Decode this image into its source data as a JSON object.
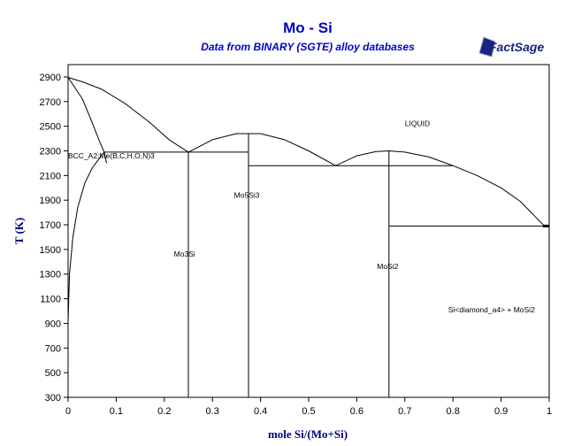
{
  "chart_data": {
    "type": "line",
    "title": "Mo - Si",
    "subtitle": "Data from BINARY (SGTE) alloy databases",
    "logo": "FactSage",
    "xlabel": "mole Si/(Mo+Si)",
    "ylabel": "T (K)",
    "xlim": [
      0,
      1
    ],
    "ylim": [
      300,
      3000
    ],
    "xticks": [
      0,
      0.1,
      0.2,
      0.3,
      0.4,
      0.5,
      0.6,
      0.7,
      0.8,
      0.9,
      1
    ],
    "xtick_labels": [
      "0",
      "0.1",
      "0.2",
      "0.3",
      "0.4",
      "0.5",
      "0.6",
      "0.7",
      "0.8",
      "0.9",
      "1"
    ],
    "yticks": [
      300,
      500,
      700,
      900,
      1100,
      1300,
      1500,
      1700,
      1900,
      2100,
      2300,
      2500,
      2700,
      2900
    ],
    "ytick_labels": [
      "300",
      "500",
      "700",
      "900",
      "1100",
      "1300",
      "1500",
      "1700",
      "1900",
      "2100",
      "2300",
      "2500",
      "2700",
      "2900"
    ],
    "grid": false,
    "series": [
      {
        "x": [
          0,
          0.03,
          0.07,
          0.12,
          0.17,
          0.21,
          0.25
        ],
        "y": [
          2896,
          2860,
          2800,
          2680,
          2530,
          2390,
          2290
        ]
      },
      {
        "x": [
          0,
          0.03,
          0.05,
          0.065,
          0.075,
          0.08
        ],
        "y": [
          2896,
          2720,
          2530,
          2380,
          2290,
          2200
        ]
      },
      {
        "x": [
          0,
          0.003,
          0.01,
          0.02,
          0.035,
          0.05,
          0.065,
          0.075
        ],
        "y": [
          920,
          1300,
          1600,
          1840,
          2040,
          2160,
          2240,
          2290
        ]
      },
      {
        "x": [
          0.25,
          0.3,
          0.35,
          0.4,
          0.45,
          0.5,
          0.556
        ],
        "y": [
          2290,
          2390,
          2440,
          2440,
          2390,
          2300,
          2180
        ]
      },
      {
        "x": [
          0.556,
          0.6,
          0.64,
          0.667,
          0.7,
          0.75,
          0.8,
          0.85,
          0.9,
          0.94,
          0.97,
          0.99
        ],
        "y": [
          2180,
          2260,
          2295,
          2300,
          2290,
          2250,
          2180,
          2100,
          2000,
          1890,
          1770,
          1690
        ]
      },
      {
        "x": [
          0.075,
          0.375
        ],
        "y": [
          2290,
          2290
        ]
      },
      {
        "x": [
          0.375,
          0.8
        ],
        "y": [
          2180,
          2180
        ]
      },
      {
        "x": [
          0.667,
          1.0
        ],
        "y": [
          1690,
          1690
        ]
      },
      {
        "x": [
          0.25,
          0.25
        ],
        "y": [
          300,
          2290
        ]
      },
      {
        "x": [
          0.375,
          0.375
        ],
        "y": [
          300,
          2440
        ]
      },
      {
        "x": [
          0.667,
          0.667
        ],
        "y": [
          300,
          2300
        ]
      }
    ],
    "annotations": [
      {
        "text": "LIQUID",
        "x": 0.7,
        "y": 2500
      },
      {
        "text": "BCC_A2:Me(B,C,H,O,N)3",
        "x": 0.0,
        "y": 2240
      },
      {
        "text": "Mo5Si3",
        "x": 0.345,
        "y": 1920
      },
      {
        "text": "Mo3Si",
        "x": 0.22,
        "y": 1440
      },
      {
        "text": "MoSi2",
        "x": 0.642,
        "y": 1340
      },
      {
        "text": "Si<diamond_a4> + MoSi2",
        "x": 0.79,
        "y": 990
      }
    ]
  }
}
